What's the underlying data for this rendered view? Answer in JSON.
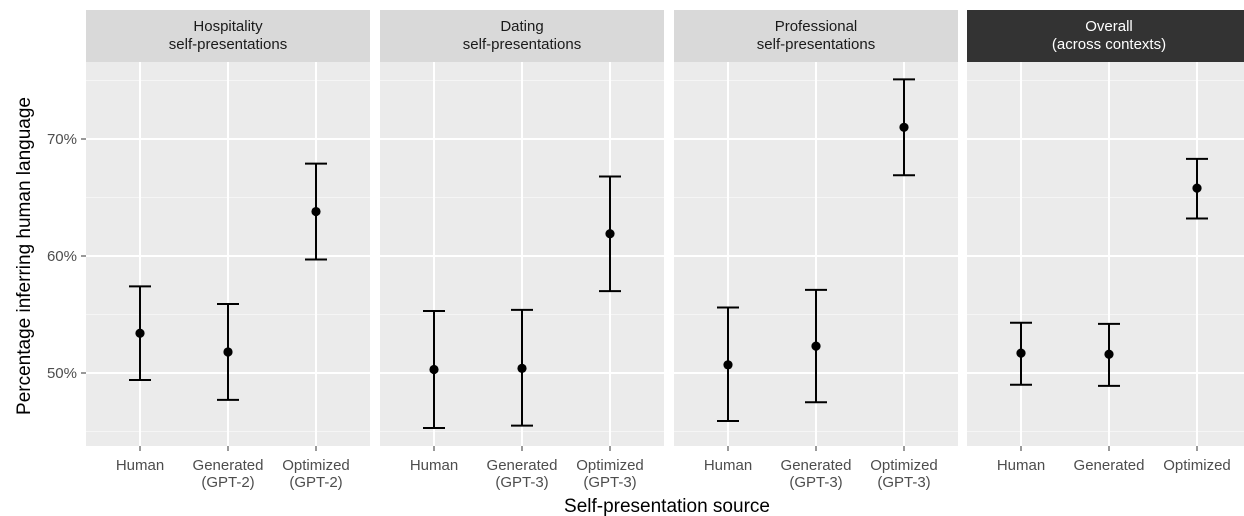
{
  "chart_data": {
    "type": "scatter",
    "subtype": "point-with-errorbars",
    "xlabel": "Self-presentation source",
    "ylabel": "Percentage inferring human language",
    "y_ticks": [
      "50%",
      "60%",
      "70%"
    ],
    "y_tick_values": [
      50,
      60,
      70
    ],
    "ylim": [
      44.5,
      76.5
    ],
    "grid": true,
    "panels": [
      {
        "title_lines": [
          "Hospitality",
          "self-presentations"
        ],
        "strip_color": "#d9d9d9",
        "categories": [
          [
            "Human"
          ],
          [
            "Generated",
            "(GPT-2)"
          ],
          [
            "Optimized",
            "(GPT-2)"
          ]
        ],
        "points": [
          {
            "mean": 53.4,
            "low": 49.4,
            "high": 57.4
          },
          {
            "mean": 51.8,
            "low": 47.7,
            "high": 55.9
          },
          {
            "mean": 63.8,
            "low": 59.7,
            "high": 67.9
          }
        ]
      },
      {
        "title_lines": [
          "Dating",
          "self-presentations"
        ],
        "strip_color": "#d9d9d9",
        "categories": [
          [
            "Human"
          ],
          [
            "Generated",
            "(GPT-3)"
          ],
          [
            "Optimized",
            "(GPT-3)"
          ]
        ],
        "points": [
          {
            "mean": 50.3,
            "low": 45.3,
            "high": 55.3
          },
          {
            "mean": 50.4,
            "low": 45.5,
            "high": 55.4
          },
          {
            "mean": 61.9,
            "low": 57.0,
            "high": 66.8
          }
        ]
      },
      {
        "title_lines": [
          "Professional",
          "self-presentations"
        ],
        "strip_color": "#d9d9d9",
        "categories": [
          [
            "Human"
          ],
          [
            "Generated",
            "(GPT-3)"
          ],
          [
            "Optimized",
            "(GPT-3)"
          ]
        ],
        "points": [
          {
            "mean": 50.7,
            "low": 45.9,
            "high": 55.6
          },
          {
            "mean": 52.3,
            "low": 47.5,
            "high": 57.1
          },
          {
            "mean": 71.0,
            "low": 66.9,
            "high": 75.1
          }
        ]
      },
      {
        "title_lines": [
          "Overall",
          "(across contexts)"
        ],
        "strip_color": "#333333",
        "categories": [
          [
            "Human"
          ],
          [
            "Generated"
          ],
          [
            "Optimized"
          ]
        ],
        "points": [
          {
            "mean": 51.7,
            "low": 49.0,
            "high": 54.3
          },
          {
            "mean": 51.6,
            "low": 48.9,
            "high": 54.2
          },
          {
            "mean": 65.8,
            "low": 63.2,
            "high": 68.3
          }
        ]
      }
    ]
  }
}
